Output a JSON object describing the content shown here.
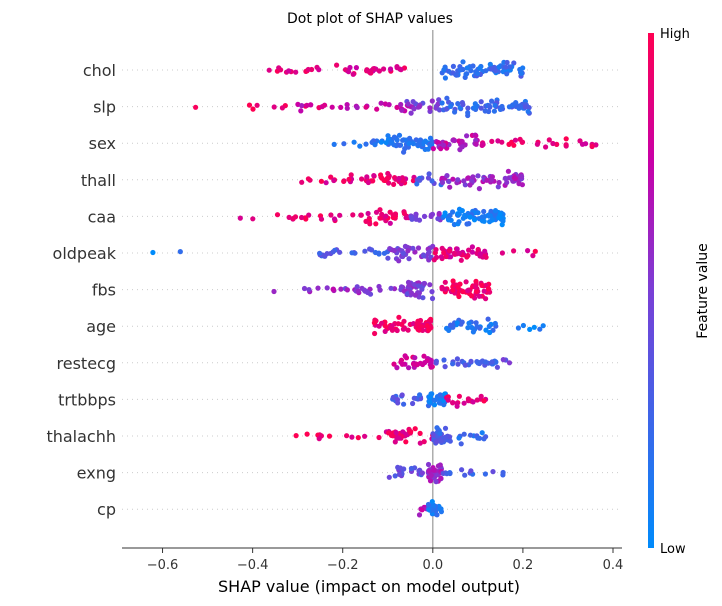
{
  "chart_data": {
    "type": "scatter",
    "title": "Dot plot of SHAP values",
    "xlabel": "SHAP value (impact on model output)",
    "xlim": [
      -0.69,
      0.42
    ],
    "xticks": [
      -0.6,
      -0.4,
      -0.2,
      0.0,
      0.2,
      0.4
    ],
    "xtick_labels": [
      "−0.6",
      "−0.4",
      "−0.2",
      "0.0",
      "0.2",
      "0.4"
    ],
    "colorbar": {
      "label": "Feature value",
      "high": "High",
      "low": "Low",
      "high_color": "#ff0052",
      "low_color": "#008bfb"
    },
    "features": [
      {
        "name": "chol",
        "clusters": [
          [
            -0.38,
            -0.23,
            14,
            0.9
          ],
          [
            -0.23,
            -0.06,
            30,
            0.85
          ],
          [
            0.02,
            0.2,
            70,
            0.2
          ]
        ]
      },
      {
        "name": "slp",
        "clusters": [
          [
            -0.53,
            -0.25,
            9,
            0.9
          ],
          [
            -0.3,
            -0.04,
            30,
            0.75
          ],
          [
            -0.06,
            0.02,
            18,
            0.5
          ],
          [
            0.02,
            0.22,
            60,
            0.25
          ]
        ]
      },
      {
        "name": "sex",
        "clusters": [
          [
            -0.22,
            -0.08,
            16,
            0.15
          ],
          [
            -0.1,
            0.0,
            50,
            0.15
          ],
          [
            0.0,
            0.1,
            35,
            0.7
          ],
          [
            0.1,
            0.37,
            28,
            0.9
          ]
        ]
      },
      {
        "name": "thall",
        "clusters": [
          [
            -0.3,
            -0.2,
            8,
            0.9
          ],
          [
            -0.2,
            -0.04,
            40,
            0.9
          ],
          [
            -0.04,
            0.02,
            10,
            0.3
          ],
          [
            0.02,
            0.2,
            60,
            0.6
          ]
        ]
      },
      {
        "name": "caa",
        "clusters": [
          [
            -0.47,
            -0.15,
            20,
            0.9
          ],
          [
            -0.15,
            -0.05,
            28,
            0.9
          ],
          [
            -0.05,
            0.02,
            16,
            0.5
          ],
          [
            0.02,
            0.16,
            70,
            0.1
          ]
        ]
      },
      {
        "name": "oldpeak",
        "clusters": [
          [
            -0.63,
            -0.48,
            2,
            0.1
          ],
          [
            -0.28,
            -0.1,
            22,
            0.3
          ],
          [
            -0.1,
            0.0,
            35,
            0.5
          ],
          [
            0.0,
            0.12,
            45,
            0.85
          ],
          [
            0.12,
            0.23,
            5,
            0.9
          ]
        ]
      },
      {
        "name": "fbs",
        "clusters": [
          [
            -0.36,
            -0.2,
            10,
            0.6
          ],
          [
            -0.2,
            -0.06,
            22,
            0.55
          ],
          [
            -0.06,
            0.0,
            35,
            0.5
          ],
          [
            0.02,
            0.13,
            60,
            0.95
          ]
        ]
      },
      {
        "name": "age",
        "clusters": [
          [
            -0.13,
            -0.04,
            30,
            0.95
          ],
          [
            -0.04,
            0.0,
            30,
            0.95
          ],
          [
            0.03,
            0.14,
            30,
            0.15
          ],
          [
            0.18,
            0.25,
            6,
            0.1
          ]
        ]
      },
      {
        "name": "restecg",
        "clusters": [
          [
            -0.09,
            0.0,
            30,
            0.8
          ],
          [
            0.0,
            0.14,
            30,
            0.3
          ],
          [
            0.14,
            0.24,
            4,
            0.4
          ]
        ]
      },
      {
        "name": "trtbbps",
        "clusters": [
          [
            -0.09,
            -0.01,
            18,
            0.3
          ],
          [
            -0.01,
            0.03,
            35,
            0.1
          ],
          [
            0.03,
            0.12,
            20,
            0.9
          ]
        ]
      },
      {
        "name": "thalachh",
        "clusters": [
          [
            -0.33,
            -0.11,
            12,
            0.95
          ],
          [
            -0.11,
            0.0,
            30,
            0.9
          ],
          [
            0.0,
            0.04,
            35,
            0.3
          ],
          [
            0.04,
            0.12,
            12,
            0.2
          ]
        ]
      },
      {
        "name": "exng",
        "clusters": [
          [
            -0.1,
            -0.01,
            18,
            0.4
          ],
          [
            -0.01,
            0.02,
            45,
            0.6
          ],
          [
            0.02,
            0.16,
            14,
            0.3
          ]
        ]
      },
      {
        "name": "cp",
        "clusters": [
          [
            -0.03,
            -0.01,
            8,
            0.7
          ],
          [
            -0.01,
            0.02,
            30,
            0.1
          ]
        ]
      }
    ]
  }
}
